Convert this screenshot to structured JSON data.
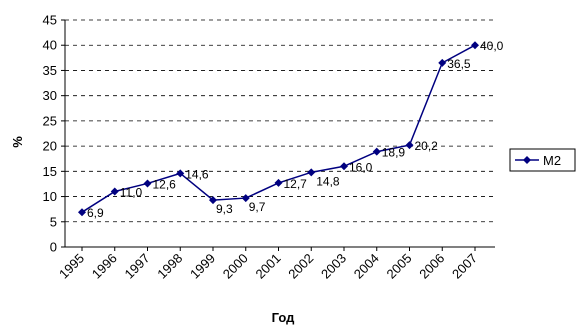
{
  "chart_data": {
    "type": "line",
    "categories": [
      "1995",
      "1996",
      "1997",
      "1998",
      "1999",
      "2000",
      "2001",
      "2002",
      "2003",
      "2004",
      "2005",
      "2006",
      "2007"
    ],
    "series": [
      {
        "name": "M2",
        "values": [
          6.9,
          11.0,
          12.6,
          14.6,
          9.3,
          9.7,
          12.7,
          14.8,
          16.0,
          18.9,
          20.2,
          36.5,
          40.0
        ],
        "labels": [
          "6,9",
          "11,0",
          "12,6",
          "14,6",
          "9,3",
          "9,7",
          "12,7",
          "14,8",
          "16,0",
          "18,9",
          "20,2",
          "36,5",
          "40,0"
        ],
        "color": "#000080"
      }
    ],
    "xlabel": "Год",
    "ylabel": "%",
    "ylim": [
      0,
      45
    ],
    "yticks": [
      0,
      5,
      10,
      15,
      20,
      25,
      30,
      35,
      40,
      45
    ],
    "grid": "horizontal-dashed",
    "legend_position": "right"
  }
}
